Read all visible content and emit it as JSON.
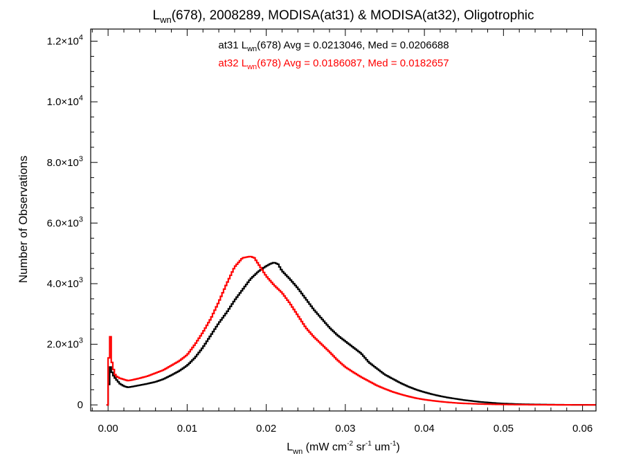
{
  "chart_data": {
    "type": "line",
    "step": true,
    "title": {
      "base1": "L",
      "sub1": "wn",
      "rest": "(678), 2008289, MODISA(at31) & MODISA(at32), Oligotrophic"
    },
    "xlabel": {
      "base": "L",
      "sub": "wn",
      "p1": " (mW cm",
      "sup1": "-2",
      "p2": " sr",
      "sup2": "-1",
      "p3": " um",
      "sup3": "-1",
      "p4": ")"
    },
    "ylabel": "Number of Observations",
    "xlim": [
      -0.0022,
      0.0617
    ],
    "ylim": [
      -200,
      12400
    ],
    "xticks": [
      {
        "v": 0.0,
        "label": "0.00"
      },
      {
        "v": 0.01,
        "label": "0.01"
      },
      {
        "v": 0.02,
        "label": "0.02"
      },
      {
        "v": 0.03,
        "label": "0.03"
      },
      {
        "v": 0.04,
        "label": "0.04"
      },
      {
        "v": 0.05,
        "label": "0.05"
      },
      {
        "v": 0.06,
        "label": "0.06"
      }
    ],
    "yticks": [
      {
        "v": 0,
        "mant": "0",
        "exp": ""
      },
      {
        "v": 2000,
        "mant": "2.0×10",
        "exp": "3"
      },
      {
        "v": 4000,
        "mant": "4.0×10",
        "exp": "3"
      },
      {
        "v": 6000,
        "mant": "6.0×10",
        "exp": "3"
      },
      {
        "v": 8000,
        "mant": "8.0×10",
        "exp": "3"
      },
      {
        "v": 10000,
        "mant": "1.0×10",
        "exp": "4"
      },
      {
        "v": 12000,
        "mant": "1.2×10",
        "exp": "4"
      }
    ],
    "annotations": [
      {
        "color": "#000000",
        "pre": "at31 L",
        "sub": "wn",
        "post": "(678) Avg = 0.0213046, Med = 0.0206688"
      },
      {
        "color": "#ff0000",
        "pre": "at32 L",
        "sub": "wn",
        "post": "(678) Avg = 0.0186087, Med = 0.0182657"
      }
    ],
    "series": [
      {
        "color": "#000000",
        "points": [
          [
            -0.0002,
            0
          ],
          [
            0.0,
            0
          ],
          [
            0.0002,
            1350
          ],
          [
            0.0004,
            1150
          ],
          [
            0.0006,
            1000
          ],
          [
            0.001,
            850
          ],
          [
            0.0015,
            700
          ],
          [
            0.002,
            620
          ],
          [
            0.0025,
            580
          ],
          [
            0.003,
            600
          ],
          [
            0.004,
            650
          ],
          [
            0.005,
            700
          ],
          [
            0.006,
            760
          ],
          [
            0.007,
            850
          ],
          [
            0.008,
            980
          ],
          [
            0.009,
            1120
          ],
          [
            0.01,
            1300
          ],
          [
            0.011,
            1560
          ],
          [
            0.012,
            1900
          ],
          [
            0.013,
            2300
          ],
          [
            0.014,
            2700
          ],
          [
            0.015,
            3050
          ],
          [
            0.016,
            3450
          ],
          [
            0.017,
            3800
          ],
          [
            0.018,
            4150
          ],
          [
            0.019,
            4400
          ],
          [
            0.02,
            4580
          ],
          [
            0.0205,
            4650
          ],
          [
            0.021,
            4700
          ],
          [
            0.0215,
            4640
          ],
          [
            0.022,
            4420
          ],
          [
            0.023,
            4150
          ],
          [
            0.024,
            3850
          ],
          [
            0.025,
            3500
          ],
          [
            0.026,
            3150
          ],
          [
            0.027,
            2850
          ],
          [
            0.028,
            2550
          ],
          [
            0.029,
            2300
          ],
          [
            0.03,
            2100
          ],
          [
            0.031,
            1900
          ],
          [
            0.032,
            1700
          ],
          [
            0.033,
            1400
          ],
          [
            0.034,
            1200
          ],
          [
            0.035,
            1000
          ],
          [
            0.036,
            860
          ],
          [
            0.037,
            720
          ],
          [
            0.038,
            600
          ],
          [
            0.039,
            500
          ],
          [
            0.04,
            420
          ],
          [
            0.041,
            350
          ],
          [
            0.042,
            290
          ],
          [
            0.043,
            240
          ],
          [
            0.044,
            200
          ],
          [
            0.045,
            160
          ],
          [
            0.046,
            130
          ],
          [
            0.047,
            100
          ],
          [
            0.048,
            80
          ],
          [
            0.049,
            60
          ],
          [
            0.05,
            45
          ],
          [
            0.052,
            25
          ],
          [
            0.054,
            15
          ],
          [
            0.056,
            8
          ],
          [
            0.058,
            4
          ],
          [
            0.06,
            2
          ],
          [
            0.0617,
            1
          ]
        ]
      },
      {
        "color": "#ff0000",
        "points": [
          [
            -0.0002,
            0
          ],
          [
            0.0,
            0
          ],
          [
            0.0001,
            1550
          ],
          [
            0.0003,
            2250
          ],
          [
            0.0005,
            1400
          ],
          [
            0.0008,
            1050
          ],
          [
            0.001,
            950
          ],
          [
            0.0015,
            880
          ],
          [
            0.002,
            840
          ],
          [
            0.0025,
            800
          ],
          [
            0.003,
            820
          ],
          [
            0.004,
            880
          ],
          [
            0.005,
            950
          ],
          [
            0.006,
            1050
          ],
          [
            0.007,
            1150
          ],
          [
            0.008,
            1300
          ],
          [
            0.009,
            1450
          ],
          [
            0.01,
            1650
          ],
          [
            0.011,
            2000
          ],
          [
            0.012,
            2400
          ],
          [
            0.013,
            2850
          ],
          [
            0.014,
            3400
          ],
          [
            0.015,
            4000
          ],
          [
            0.016,
            4550
          ],
          [
            0.017,
            4850
          ],
          [
            0.018,
            4900
          ],
          [
            0.0185,
            4850
          ],
          [
            0.019,
            4650
          ],
          [
            0.02,
            4250
          ],
          [
            0.021,
            3950
          ],
          [
            0.022,
            3700
          ],
          [
            0.023,
            3350
          ],
          [
            0.024,
            2950
          ],
          [
            0.025,
            2550
          ],
          [
            0.026,
            2250
          ],
          [
            0.027,
            2000
          ],
          [
            0.028,
            1750
          ],
          [
            0.029,
            1480
          ],
          [
            0.03,
            1250
          ],
          [
            0.031,
            1080
          ],
          [
            0.032,
            920
          ],
          [
            0.033,
            780
          ],
          [
            0.034,
            640
          ],
          [
            0.035,
            530
          ],
          [
            0.036,
            430
          ],
          [
            0.037,
            350
          ],
          [
            0.038,
            280
          ],
          [
            0.039,
            220
          ],
          [
            0.04,
            175
          ],
          [
            0.041,
            140
          ],
          [
            0.042,
            110
          ],
          [
            0.043,
            85
          ],
          [
            0.044,
            65
          ],
          [
            0.045,
            50
          ],
          [
            0.047,
            30
          ],
          [
            0.049,
            18
          ],
          [
            0.051,
            10
          ],
          [
            0.054,
            5
          ],
          [
            0.057,
            2
          ],
          [
            0.0617,
            1
          ]
        ]
      }
    ]
  }
}
